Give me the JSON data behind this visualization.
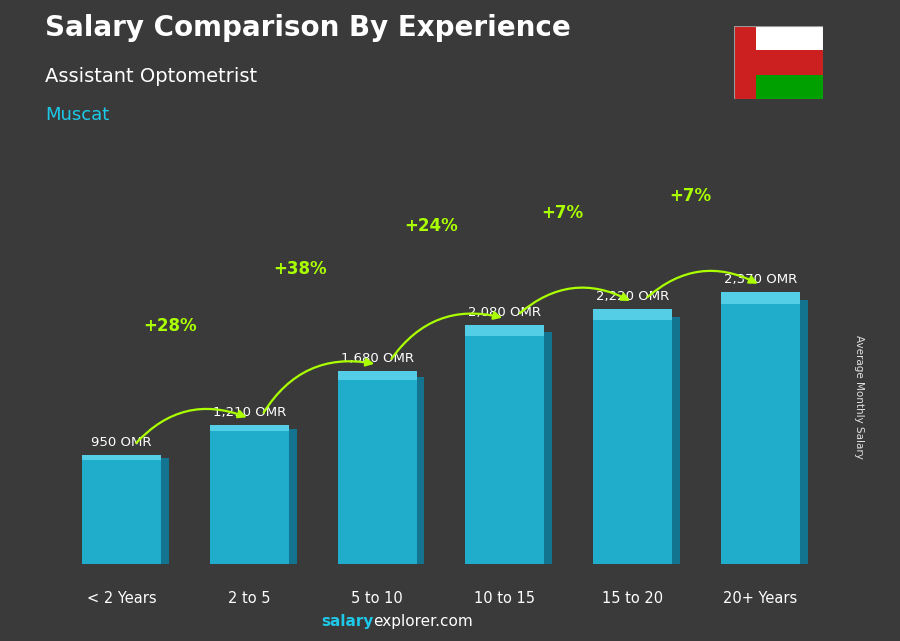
{
  "title": "Salary Comparison By Experience",
  "subtitle": "Assistant Optometrist",
  "city": "Muscat",
  "ylabel": "Average Monthly Salary",
  "categories": [
    "< 2 Years",
    "2 to 5",
    "5 to 10",
    "10 to 15",
    "15 to 20",
    "20+ Years"
  ],
  "values": [
    950,
    1210,
    1680,
    2080,
    2220,
    2370
  ],
  "value_labels": [
    "950 OMR",
    "1,210 OMR",
    "1,680 OMR",
    "2,080 OMR",
    "2,220 OMR",
    "2,370 OMR"
  ],
  "pct_labels": [
    "+28%",
    "+38%",
    "+24%",
    "+7%",
    "+7%"
  ],
  "bar_color_main": "#1EB8D8",
  "bar_color_side": "#0F7A96",
  "bar_color_top": "#5DD5EC",
  "title_color": "#FFFFFF",
  "subtitle_color": "#FFFFFF",
  "city_color": "#1EC8E8",
  "value_label_color": "#FFFFFF",
  "pct_color": "#AAFF00",
  "arrow_color": "#AAFF00",
  "bg_color": "#3a3a3a",
  "footer_salary_color": "#1EC8E8",
  "footer_explorer_color": "#FFFFFF",
  "ylim_max": 2900,
  "bar_width": 0.62
}
